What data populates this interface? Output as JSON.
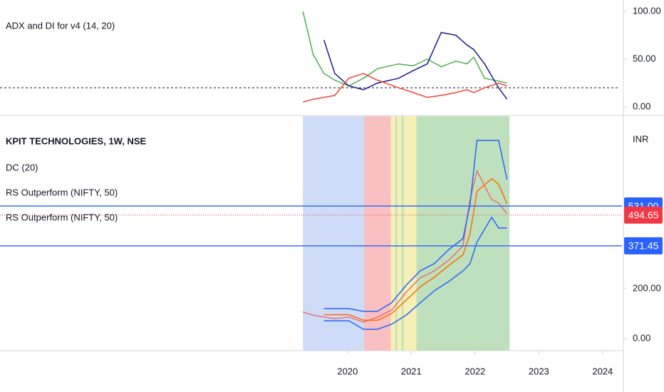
{
  "chart_data": [
    {
      "type": "line",
      "title": "ADX and DI for v4 (14, 20)",
      "x": [
        2019.3,
        2019.46,
        2019.63,
        2019.8,
        2020.02,
        2020.25,
        2020.47,
        2020.8,
        2021.03,
        2021.25,
        2021.47,
        2021.7,
        2021.87,
        2021.98,
        2022.15,
        2022.37,
        2022.5
      ],
      "series": [
        {
          "color": "#4caf50",
          "values": [
            100,
            55,
            35,
            28,
            22,
            30,
            40,
            45,
            43,
            50,
            42,
            48,
            45,
            52,
            30,
            27,
            25
          ]
        },
        {
          "color": "#1a1a8c",
          "values": [
            null,
            null,
            70,
            35,
            22,
            18,
            25,
            30,
            38,
            45,
            78,
            75,
            65,
            60,
            45,
            20,
            8
          ]
        },
        {
          "color": "#f44336",
          "values": [
            5,
            8,
            10,
            12,
            30,
            35,
            28,
            20,
            15,
            10,
            12,
            15,
            18,
            15,
            20,
            25,
            22
          ]
        }
      ],
      "hline": 20,
      "xlim": [
        2014.55,
        2024.27
      ],
      "ylim": [
        -7.5,
        112
      ],
      "yticks": [
        {
          "value": 100,
          "label": "100.00"
        },
        {
          "value": 50,
          "label": "50.00"
        },
        {
          "value": 0,
          "label": "0.00"
        }
      ]
    },
    {
      "type": "line",
      "title": "KPIT TECHNOLOGIES, 1W, NSE",
      "indicators": [
        "DC (20)",
        "RS Outperform (NIFTY, 50)",
        "RS Outperform (NIFTY, 50)"
      ],
      "y_unit": "INR",
      "x": [
        2019.3,
        2019.46,
        2019.63,
        2019.8,
        2020.02,
        2020.25,
        2020.47,
        2020.69,
        2020.92,
        2021.14,
        2021.36,
        2021.59,
        2021.81,
        2021.92,
        2022.03,
        2022.26,
        2022.37,
        2022.5
      ],
      "bands": [
        {
          "start": 2019.3,
          "end": 2020.26,
          "color": "#cfdcf8"
        },
        {
          "start": 2020.26,
          "end": 2020.68,
          "color": "#f8c0c0"
        },
        {
          "start": 2020.68,
          "end": 2020.75,
          "color": "#f7f0b6"
        },
        {
          "start": 2020.75,
          "end": 2020.78,
          "color": "#bfe0bd"
        },
        {
          "start": 2020.78,
          "end": 2020.85,
          "color": "#f7f0b6"
        },
        {
          "start": 2020.85,
          "end": 2020.88,
          "color": "#bfe0bd"
        },
        {
          "start": 2020.88,
          "end": 2021.08,
          "color": "#f7f0b6"
        },
        {
          "start": 2021.08,
          "end": 2022.54,
          "color": "#bfe0bd"
        }
      ],
      "series": [
        {
          "color": "#e57373",
          "values": [
            106,
            94,
            86,
            80,
            86,
            66,
            86,
            114,
            186,
            243,
            271,
            314,
            371,
            557,
            671,
            557,
            543,
            500
          ]
        },
        {
          "color": "#2962ff",
          "values": [
            null,
            null,
            120,
            120,
            120,
            109,
            109,
            143,
            214,
            271,
            300,
            357,
            400,
            537,
            794,
            794,
            794,
            637
          ]
        },
        {
          "color": "#ff6d00",
          "values": [
            null,
            null,
            95.5,
            95.5,
            95.5,
            73,
            73,
            100,
            154,
            207,
            245.5,
            293,
            335.5,
            418.5,
            590,
            640,
            618.5,
            540
          ]
        },
        {
          "color": "#2962ff",
          "values": [
            null,
            null,
            71,
            71,
            71,
            37,
            37,
            57,
            94,
            143,
            191,
            229,
            271,
            300,
            386,
            486,
            443,
            443
          ]
        }
      ],
      "price_lines": [
        {
          "value": 531,
          "label": "531.00",
          "color": "#2962ff"
        },
        {
          "value": 494.65,
          "label": "494.65",
          "color": "#f23645"
        },
        {
          "value": 371.45,
          "label": "371.45",
          "color": "#2962ff"
        }
      ],
      "xlim": [
        2014.55,
        2024.27
      ],
      "xticks": [
        2020,
        2021,
        2022,
        2023,
        2024
      ],
      "ylim": [
        -48.6,
        891
      ],
      "yticks": [
        {
          "value": 0,
          "label": "0.00"
        },
        {
          "value": 200,
          "label": "200.00"
        }
      ]
    }
  ]
}
